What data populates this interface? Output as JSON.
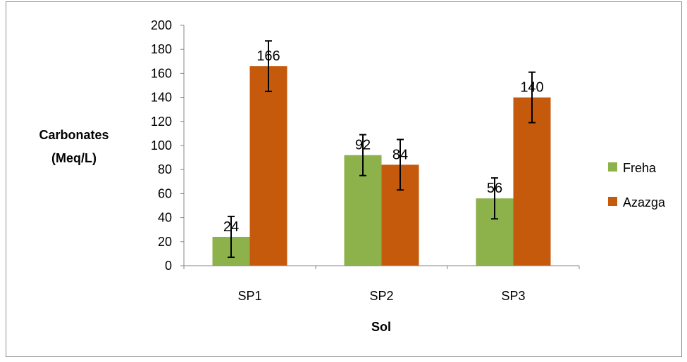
{
  "chart_data": {
    "type": "bar",
    "categories": [
      "SP1",
      "SP2",
      "SP3"
    ],
    "series": [
      {
        "name": "Freha",
        "values": [
          24,
          92,
          56
        ],
        "error": [
          17,
          17,
          17
        ],
        "color": "#8db14b"
      },
      {
        "name": "Azazga",
        "values": [
          166,
          84,
          140
        ],
        "error": [
          21,
          21,
          21
        ],
        "color": "#c55a0c"
      }
    ],
    "data_labels": {
      "Freha": [
        "24",
        "92",
        "56"
      ],
      "Azazga": [
        "166",
        "84",
        "140"
      ]
    },
    "title": "",
    "xlabel": "Sol",
    "ylabel_lines": [
      "Carbonates",
      "(Meq/L)"
    ],
    "ylim": [
      0,
      200
    ],
    "yticks": [
      "0",
      "20",
      "40",
      "60",
      "80",
      "100",
      "120",
      "140",
      "160",
      "180",
      "200"
    ],
    "grid": false,
    "legend_position": "right"
  }
}
